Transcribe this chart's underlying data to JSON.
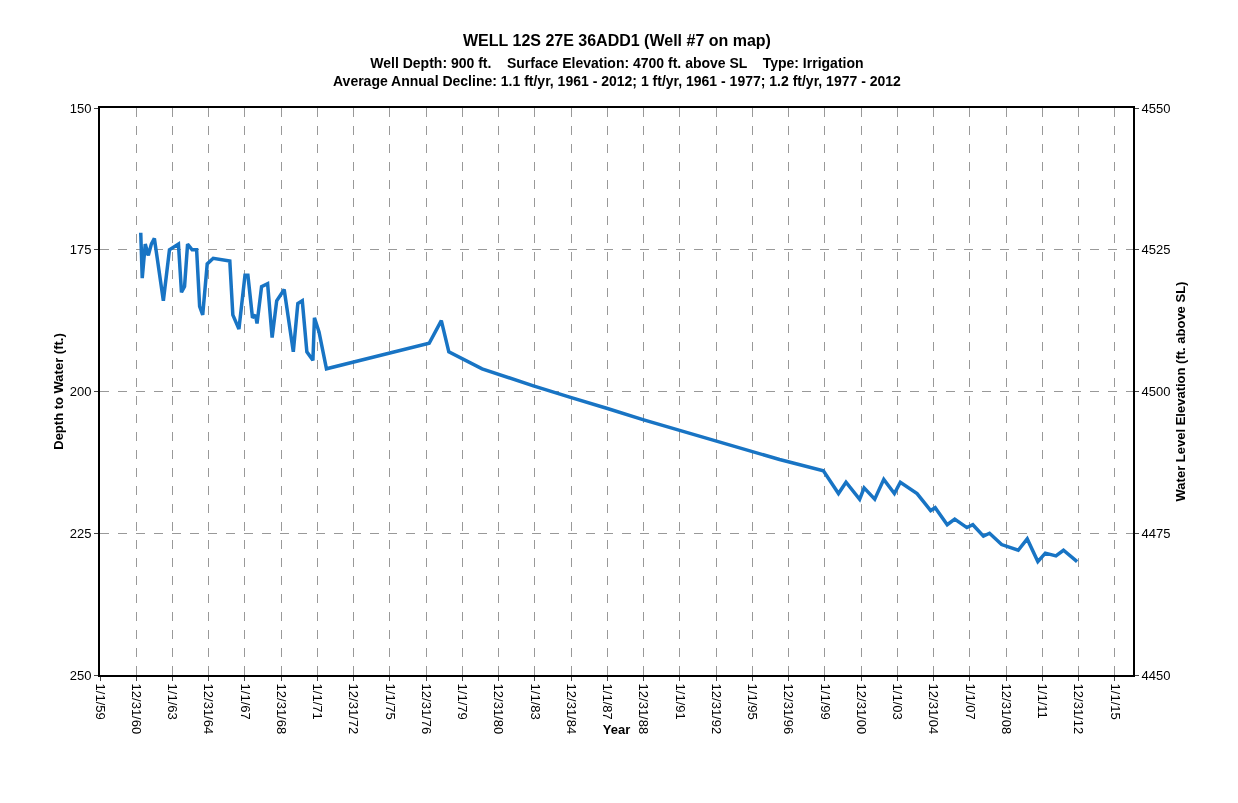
{
  "chart_data": {
    "type": "line",
    "title": "WELL 12S 27E 36ADD1 (Well #7 on map)",
    "subtitle": "Well Depth: 900 ft.    Surface Elevation: 4700 ft. above SL    Type: Irrigation\nAverage Annual Decline: 1.1 ft/yr, 1961 - 2012; 1 ft/yr, 1961 - 1977; 1.2 ft/yr, 1977 - 2012",
    "xlabel": "Year",
    "ylabel": "Depth to Water (ft.)",
    "y2label": "Water Level Elevation (ft. above SL)",
    "x": [
      "1961-04",
      "1961-05",
      "1961-07",
      "1961-09",
      "1961-11",
      "1962-01",
      "1962-07",
      "1962-11",
      "1963-05",
      "1963-07",
      "1963-09",
      "1963-11",
      "1964-02",
      "1964-05",
      "1964-07",
      "1964-09",
      "1964-12",
      "1965-04",
      "1966-03",
      "1966-05",
      "1966-09",
      "1967-01",
      "1967-03",
      "1967-06",
      "1967-08",
      "1967-09",
      "1967-12",
      "1968-04",
      "1968-07",
      "1968-10",
      "1969-03",
      "1969-09",
      "1969-12",
      "1970-03",
      "1970-06",
      "1970-10",
      "1970-11",
      "1971-02",
      "1971-07",
      "1977-03",
      "1977-11",
      "1978-04",
      "1980-02",
      "1982-12",
      "1984-12",
      "1987-01",
      "1989-01",
      "1996-07",
      "1998-12",
      "1999-10",
      "2000-03",
      "2000-12",
      "2001-03",
      "2001-10",
      "2002-04",
      "2002-11",
      "2003-03",
      "2004-02",
      "2004-11",
      "2005-02",
      "2005-10",
      "2006-03",
      "2006-11",
      "2007-03",
      "2007-10",
      "2008-02",
      "2008-10",
      "2009-09",
      "2010-03",
      "2010-10",
      "2011-03",
      "2011-10",
      "2012-03",
      "2012-12"
    ],
    "series": [
      {
        "color": "#1874c4",
        "values": [
          172,
          180,
          174,
          176,
          174,
          173,
          184,
          175,
          174,
          182.5,
          181.5,
          174,
          175,
          175,
          185,
          186.5,
          177.5,
          176.5,
          177,
          186.5,
          189,
          179.5,
          179.5,
          187,
          186.5,
          188,
          181.5,
          181,
          190.5,
          184,
          182,
          193,
          184.5,
          184,
          193,
          194.5,
          187,
          189.5,
          196,
          191.5,
          187.5,
          193,
          196,
          199,
          201,
          203,
          205,
          212,
          214,
          218,
          216,
          219,
          217,
          219,
          215.5,
          218,
          216,
          218,
          221,
          220.5,
          223.5,
          222.5,
          224,
          223.5,
          225.5,
          225,
          227,
          228,
          226,
          230,
          228.5,
          229,
          228,
          230
        ]
      }
    ],
    "xlim": [
      "1959-01-01",
      "2016-01-01"
    ],
    "xticks": [
      {
        "value": "1959-01-01",
        "label": "1/1/59"
      },
      {
        "value": "1960-12-31",
        "label": "12/31/60"
      },
      {
        "value": "1963-01-01",
        "label": "1/1/63"
      },
      {
        "value": "1964-12-31",
        "label": "12/31/64"
      },
      {
        "value": "1967-01-01",
        "label": "1/1/67"
      },
      {
        "value": "1968-12-31",
        "label": "12/31/68"
      },
      {
        "value": "1971-01-01",
        "label": "1/1/71"
      },
      {
        "value": "1972-12-31",
        "label": "12/31/72"
      },
      {
        "value": "1975-01-01",
        "label": "1/1/75"
      },
      {
        "value": "1976-12-31",
        "label": "12/31/76"
      },
      {
        "value": "1979-01-01",
        "label": "1/1/79"
      },
      {
        "value": "1980-12-31",
        "label": "12/31/80"
      },
      {
        "value": "1983-01-01",
        "label": "1/1/83"
      },
      {
        "value": "1984-12-31",
        "label": "12/31/84"
      },
      {
        "value": "1987-01-01",
        "label": "1/1/87"
      },
      {
        "value": "1988-12-31",
        "label": "12/31/88"
      },
      {
        "value": "1991-01-01",
        "label": "1/1/91"
      },
      {
        "value": "1992-12-31",
        "label": "12/31/92"
      },
      {
        "value": "1995-01-01",
        "label": "1/1/95"
      },
      {
        "value": "1996-12-31",
        "label": "12/31/96"
      },
      {
        "value": "1999-01-01",
        "label": "1/1/99"
      },
      {
        "value": "2000-12-31",
        "label": "12/31/00"
      },
      {
        "value": "2003-01-01",
        "label": "1/1/03"
      },
      {
        "value": "2004-12-31",
        "label": "12/31/04"
      },
      {
        "value": "2007-01-01",
        "label": "1/1/07"
      },
      {
        "value": "2008-12-31",
        "label": "12/31/08"
      },
      {
        "value": "2011-01-01",
        "label": "1/1/11"
      },
      {
        "value": "2012-12-31",
        "label": "12/31/12"
      },
      {
        "value": "2015-01-01",
        "label": "1/1/15"
      }
    ],
    "ylim": [
      250,
      150
    ],
    "yticks": [
      150,
      175,
      200,
      225,
      250
    ],
    "y2lim": [
      4450,
      4550
    ],
    "y2ticks": [
      4450,
      4475,
      4500,
      4525,
      4550
    ],
    "grid": true,
    "marker": "none",
    "line_style": "solid"
  }
}
